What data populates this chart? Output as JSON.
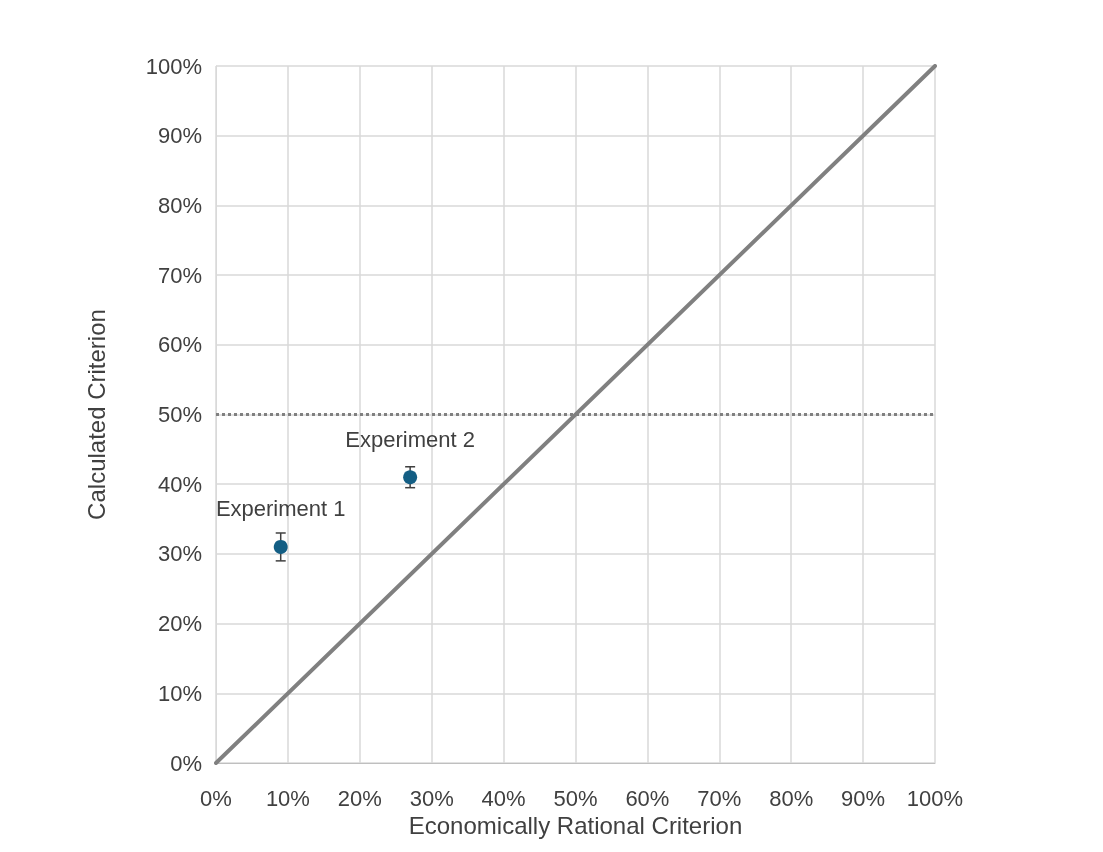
{
  "chart_data": {
    "type": "scatter",
    "xlabel": "Economically Rational Criterion",
    "ylabel": "Calculated Criterion",
    "xlim": [
      0,
      100
    ],
    "ylim": [
      0,
      100
    ],
    "xticks": [
      {
        "value": 0,
        "label": "0%"
      },
      {
        "value": 10,
        "label": "10%"
      },
      {
        "value": 20,
        "label": "20%"
      },
      {
        "value": 30,
        "label": "30%"
      },
      {
        "value": 40,
        "label": "40%"
      },
      {
        "value": 50,
        "label": "50%"
      },
      {
        "value": 60,
        "label": "60%"
      },
      {
        "value": 70,
        "label": "70%"
      },
      {
        "value": 80,
        "label": "80%"
      },
      {
        "value": 90,
        "label": "90%"
      },
      {
        "value": 100,
        "label": "100%"
      }
    ],
    "yticks": [
      {
        "value": 0,
        "label": "0%"
      },
      {
        "value": 10,
        "label": "10%"
      },
      {
        "value": 20,
        "label": "20%"
      },
      {
        "value": 30,
        "label": "30%"
      },
      {
        "value": 40,
        "label": "40%"
      },
      {
        "value": 50,
        "label": "50%"
      },
      {
        "value": 60,
        "label": "60%"
      },
      {
        "value": 70,
        "label": "70%"
      },
      {
        "value": 80,
        "label": "80%"
      },
      {
        "value": 90,
        "label": "90%"
      },
      {
        "value": 100,
        "label": "100%"
      }
    ],
    "series": [
      {
        "type": "scatter",
        "color": "#135e84",
        "x": [
          9,
          27
        ],
        "values": [
          31,
          41
        ],
        "errors": [
          2,
          1.5
        ],
        "marker": "circle"
      },
      {
        "type": "line",
        "color": "#808080",
        "x": [
          0,
          100
        ],
        "values": [
          0,
          100
        ],
        "marker": "none"
      }
    ],
    "ref_lines": [
      {
        "axis": "y",
        "value": 50,
        "color": "#808080",
        "line_style": "dotted"
      }
    ],
    "annotations": [
      {
        "text": "Experiment 1",
        "x": 9,
        "y": 31
      },
      {
        "text": "Experiment 2",
        "x": 27,
        "y": 41
      }
    ],
    "grid": true
  }
}
